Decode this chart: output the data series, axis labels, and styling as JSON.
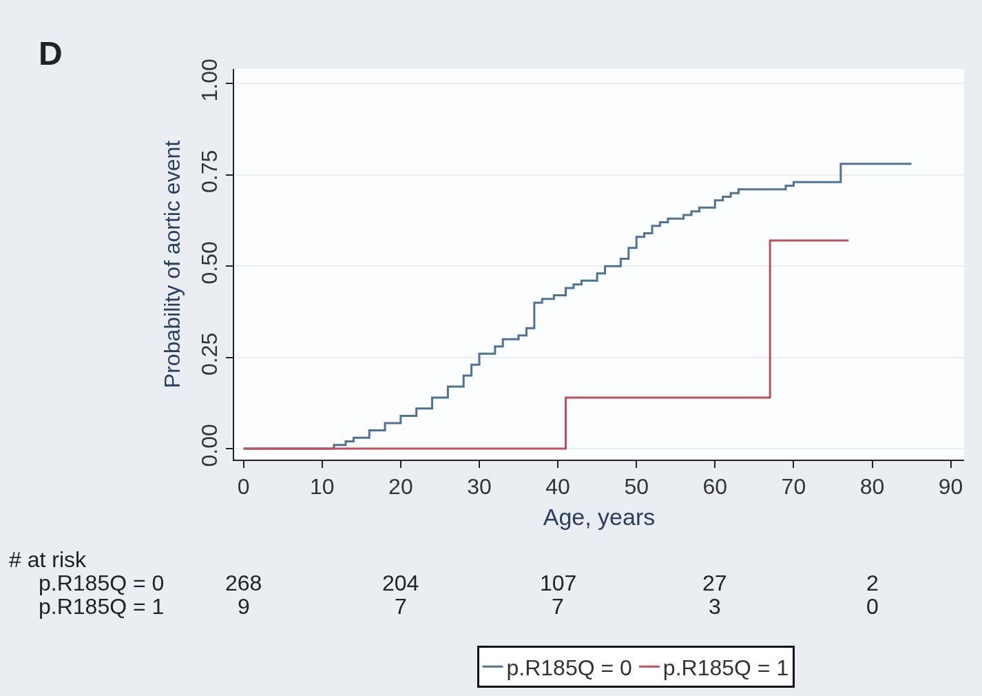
{
  "chart_data": {
    "type": "step",
    "xlabel": "Age, years",
    "ylabel": "Probability of aortic event",
    "xlim": [
      -1.2,
      91.7
    ],
    "ylim": [
      -0.03,
      1.04
    ],
    "xticks": [
      0,
      10,
      20,
      30,
      40,
      50,
      60,
      70,
      80,
      90
    ],
    "yticks": [
      {
        "value": 0,
        "label": "0.00"
      },
      {
        "value": 0.25,
        "label": "0.25"
      },
      {
        "value": 0.5,
        "label": "0.50"
      },
      {
        "value": 0.75,
        "label": "0.75"
      },
      {
        "value": 1,
        "label": "1.00"
      }
    ],
    "grid": "y",
    "legend": "bottom",
    "series": [
      {
        "name": "p.R185Q = 0",
        "color": "#4f7396",
        "x": [
          0,
          11.5,
          13,
          14,
          16,
          18,
          20,
          22,
          24,
          26,
          28,
          29,
          30,
          32,
          33,
          35,
          36,
          37,
          38,
          39.5,
          41,
          42,
          43,
          45,
          46,
          48,
          49,
          50,
          51,
          52,
          53,
          54,
          56,
          57,
          58,
          60,
          61,
          62,
          63,
          69,
          70,
          76,
          85
        ],
        "values": [
          0,
          0.01,
          0.02,
          0.03,
          0.05,
          0.07,
          0.09,
          0.11,
          0.14,
          0.17,
          0.2,
          0.23,
          0.26,
          0.28,
          0.3,
          0.31,
          0.33,
          0.4,
          0.41,
          0.42,
          0.44,
          0.45,
          0.46,
          0.48,
          0.5,
          0.52,
          0.55,
          0.58,
          0.59,
          0.61,
          0.62,
          0.63,
          0.64,
          0.65,
          0.66,
          0.68,
          0.69,
          0.7,
          0.71,
          0.72,
          0.73,
          0.78,
          0.78
        ]
      },
      {
        "name": "p.R185Q = 1",
        "color": "#c0505a",
        "x": [
          0,
          41,
          67,
          77
        ],
        "values": [
          0,
          0.14,
          0.57,
          0.57
        ]
      }
    ],
    "annotations": [
      "D",
      "# at risk",
      "p.R185Q = 0",
      "268",
      "204",
      "107",
      "27",
      "2",
      "p.R185Q = 1",
      "9",
      "7",
      "7",
      "3",
      "0"
    ]
  }
}
